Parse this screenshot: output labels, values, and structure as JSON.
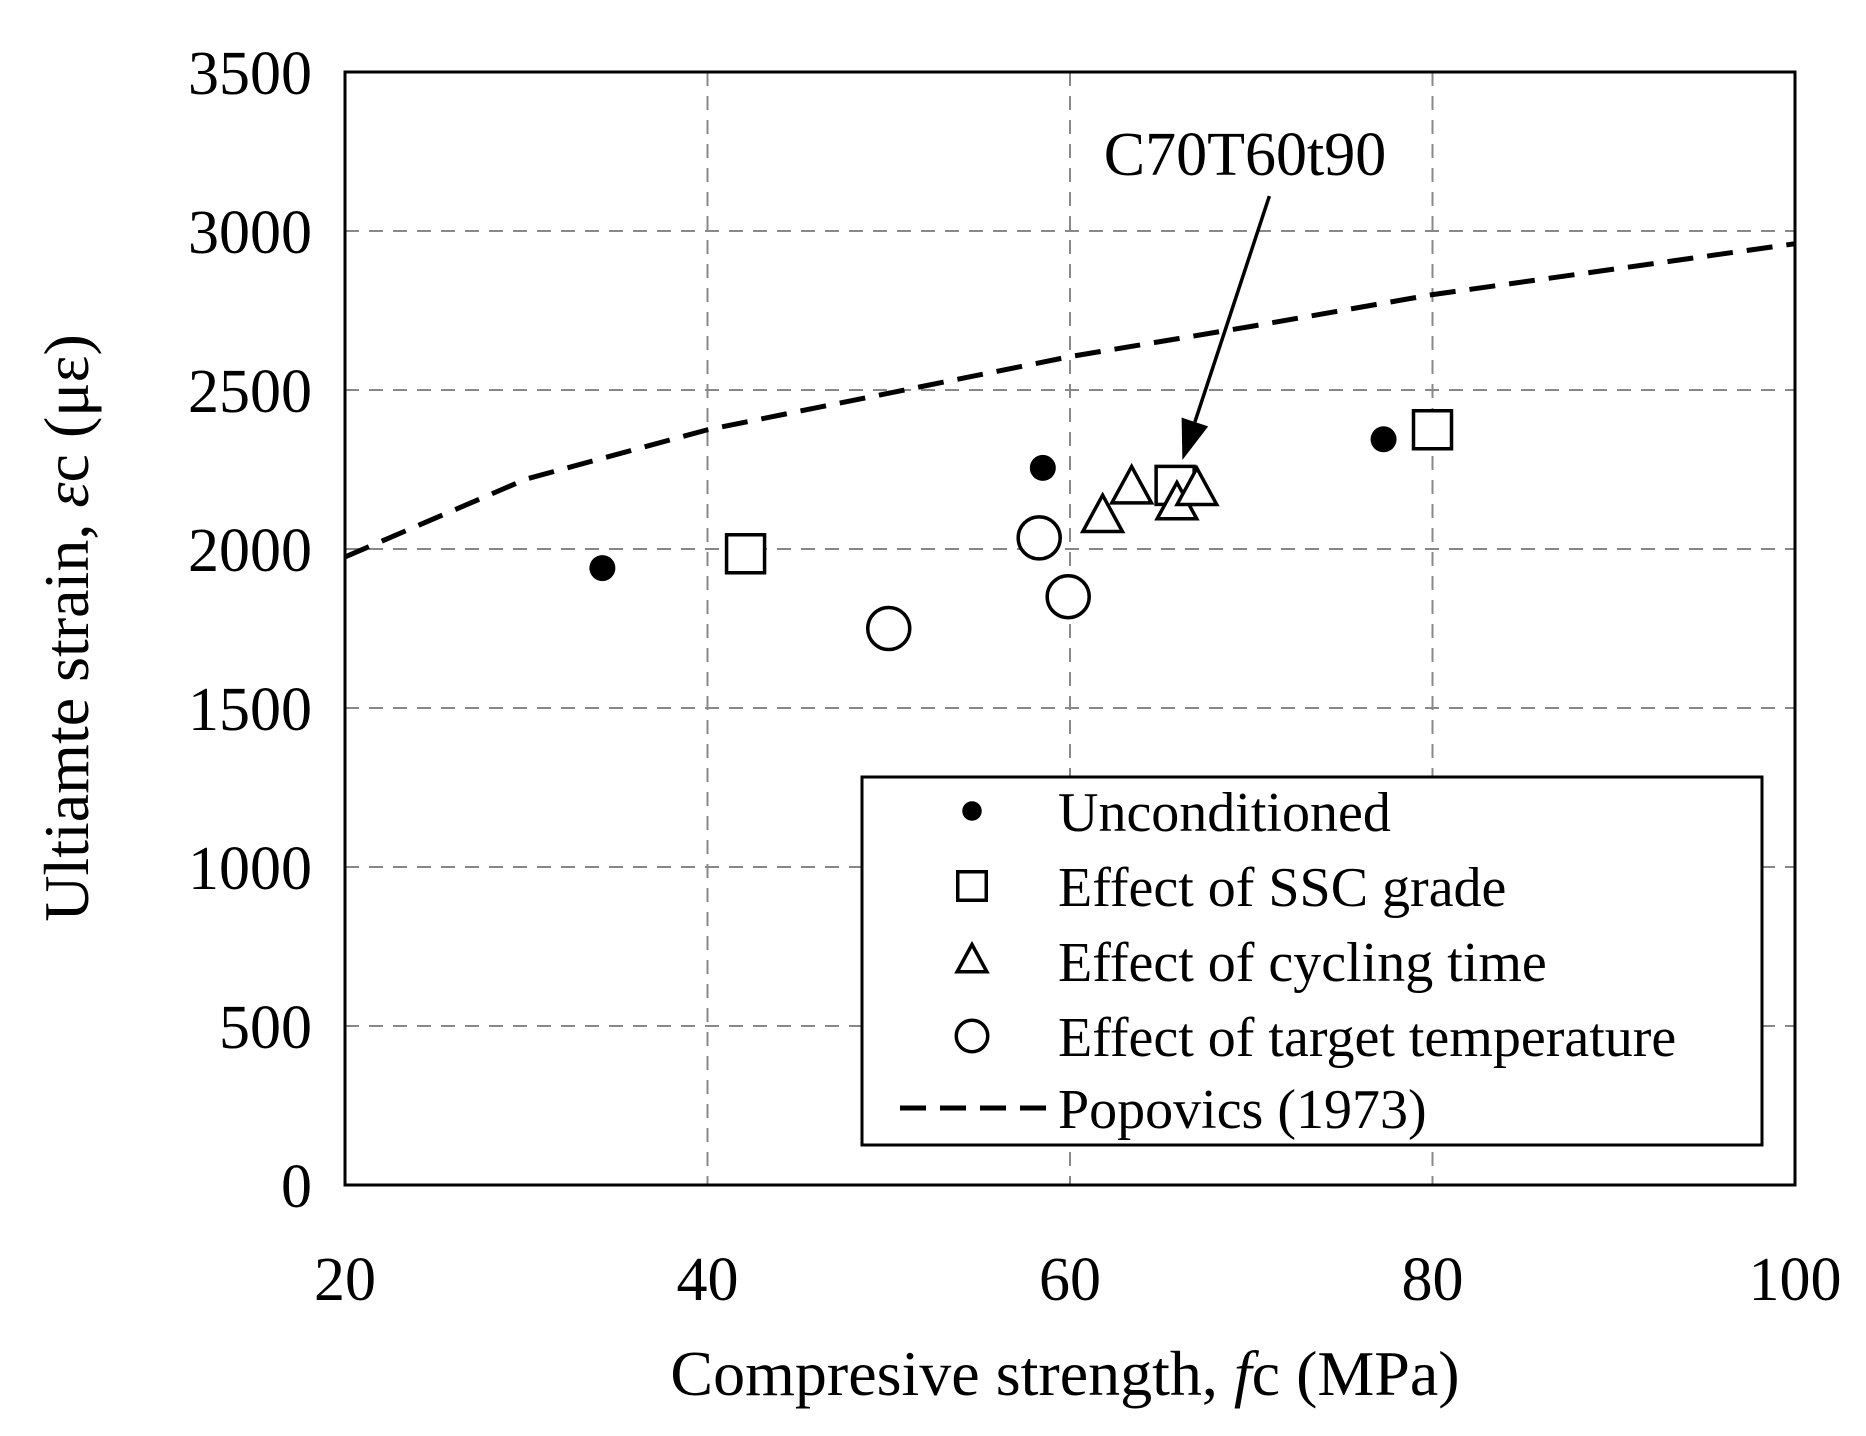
{
  "chart_data": {
    "type": "scatter",
    "xlabel_parts": {
      "prefix": "Compresive strength, ",
      "symbol": "f",
      "subscript": "c",
      "unit": " (MPa)"
    },
    "ylabel_parts": {
      "prefix": "Ultiamte strain, ",
      "symbol": "ε",
      "subscript": "c",
      "unit": " (με)"
    },
    "xlim": [
      20,
      100
    ],
    "ylim": [
      0,
      3500
    ],
    "x_ticks": [
      "20",
      "40",
      "60",
      "80",
      "100"
    ],
    "x_tick_values": [
      20,
      40,
      60,
      80,
      100
    ],
    "y_ticks": [
      "0",
      "500",
      "1000",
      "1500",
      "2000",
      "2500",
      "3000",
      "3500"
    ],
    "y_tick_values": [
      0,
      500,
      1000,
      1500,
      2000,
      2500,
      3000,
      3500
    ],
    "grid": true,
    "legend_position": "bottom-right",
    "series": [
      {
        "name": "Unconditioned",
        "marker": "filled-circle",
        "points": [
          [
            34.2,
            1940
          ],
          [
            58.5,
            2255
          ],
          [
            77.3,
            2345
          ]
        ]
      },
      {
        "name": "Effect of SSC grade",
        "marker": "open-square",
        "points": [
          [
            42.1,
            1985
          ],
          [
            65.8,
            2200
          ],
          [
            80.0,
            2375
          ]
        ]
      },
      {
        "name": "Effect of cycling time",
        "marker": "open-triangle",
        "points": [
          [
            61.8,
            2100
          ],
          [
            63.4,
            2190
          ],
          [
            65.9,
            2140
          ],
          [
            67.0,
            2185
          ]
        ]
      },
      {
        "name": "Effect of target temperature",
        "marker": "open-circle",
        "points": [
          [
            50.0,
            1750
          ],
          [
            58.3,
            2035
          ],
          [
            59.9,
            1850
          ]
        ]
      }
    ],
    "curves": [
      {
        "name": "Popovics (1973)",
        "style": "dashed",
        "points": [
          [
            20,
            1975
          ],
          [
            30,
            2220
          ],
          [
            40,
            2375
          ],
          [
            50,
            2490
          ],
          [
            60,
            2605
          ],
          [
            70,
            2700
          ],
          [
            80,
            2800
          ],
          [
            90,
            2880
          ],
          [
            100,
            2960
          ]
        ]
      }
    ],
    "annotations": [
      {
        "text": "C70T60t90",
        "arrow_from": [
          71.0,
          3110
        ],
        "arrow_to": [
          66.2,
          2280
        ]
      }
    ]
  }
}
